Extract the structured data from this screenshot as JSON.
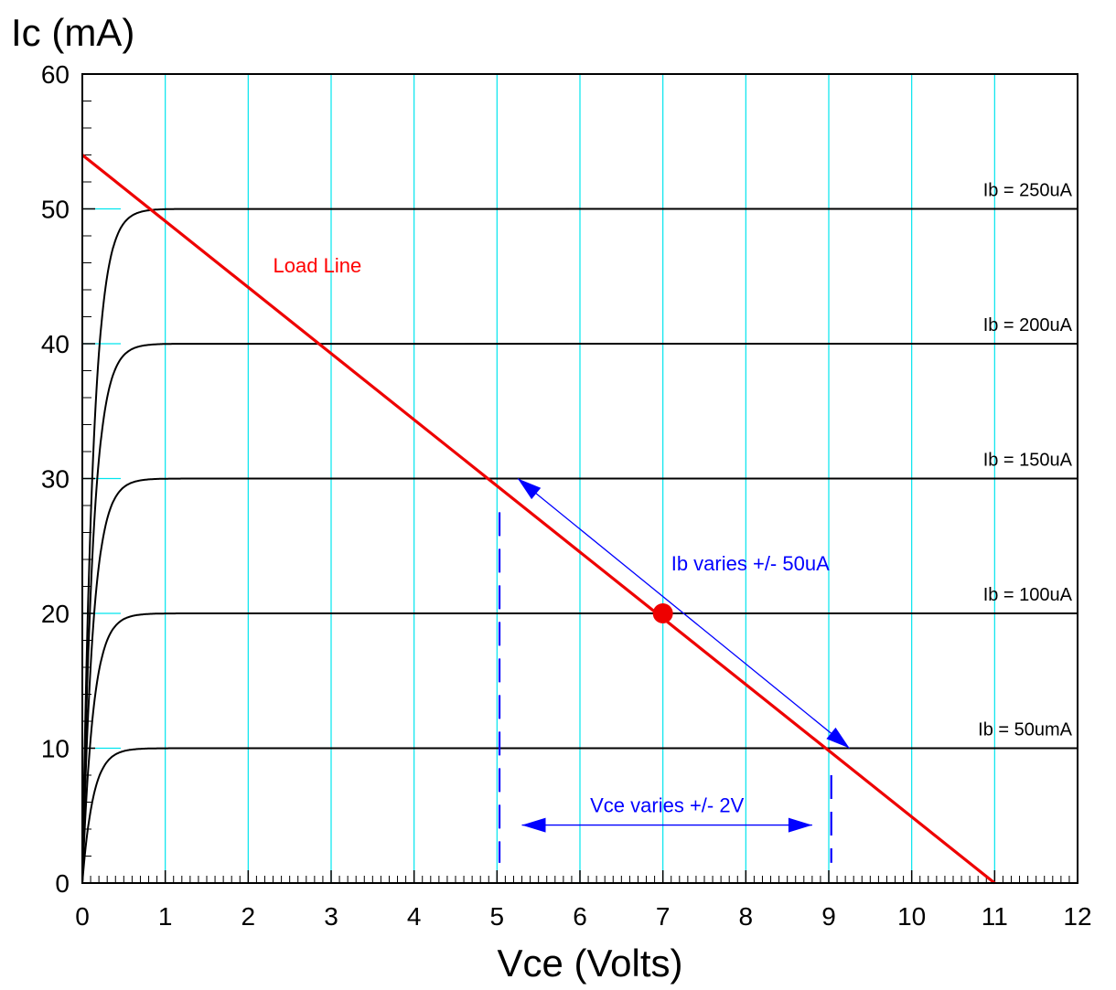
{
  "chart_data": {
    "type": "line",
    "xlabel": "Vce (Volts)",
    "ylabel": "Ic (mA)",
    "xlim": [
      0,
      12
    ],
    "ylim": [
      0,
      60
    ],
    "x_ticks": [
      "0",
      "1",
      "2",
      "3",
      "4",
      "5",
      "6",
      "7",
      "8",
      "9",
      "10",
      "11",
      "12"
    ],
    "y_ticks": [
      "0",
      "10",
      "20",
      "30",
      "40",
      "50",
      "60"
    ],
    "grid": "vertical",
    "colors": {
      "grid": "#00e5ee",
      "curves": "#000000",
      "load_line": "#ee0000",
      "annotation": "#0000ff"
    },
    "series": [
      {
        "name": "Ib = 50umA",
        "saturation_ic": 10
      },
      {
        "name": "Ib = 100uA",
        "saturation_ic": 20
      },
      {
        "name": "Ib = 150uA",
        "saturation_ic": 30
      },
      {
        "name": "Ib = 200uA",
        "saturation_ic": 40
      },
      {
        "name": "Ib = 250uA",
        "saturation_ic": 50
      }
    ],
    "load_line": {
      "label": "Load Line",
      "x": [
        0,
        11
      ],
      "y": [
        54,
        0
      ]
    },
    "q_point": {
      "x": 7,
      "y": 20
    },
    "annotations": [
      {
        "text": "Ib varies +/- 50uA",
        "from": [
          5.25,
          30
        ],
        "to": [
          9.25,
          10
        ]
      },
      {
        "text": "Vce varies +/- 2V",
        "from": [
          5.3,
          4.3
        ],
        "to": [
          8.8,
          4.3
        ]
      }
    ],
    "vce_markers": [
      5,
      9
    ]
  }
}
